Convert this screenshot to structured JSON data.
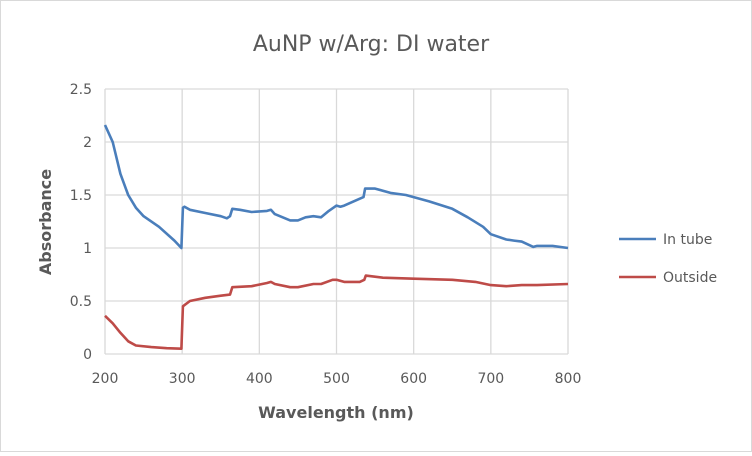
{
  "chart_data": {
    "type": "line",
    "title": "AuNP w/Arg: DI water",
    "xlabel": "Wavelength (nm)",
    "ylabel": "Absorbance",
    "xlim": [
      200,
      800
    ],
    "ylim": [
      0,
      2.5
    ],
    "xticks": [
      200,
      300,
      400,
      500,
      600,
      700,
      800
    ],
    "yticks": [
      0,
      0.5,
      1,
      1.5,
      2,
      2.5
    ],
    "xtick_labels": [
      "200",
      "300",
      "400",
      "500",
      "600",
      "700",
      "800"
    ],
    "ytick_labels": [
      "0",
      "0.5",
      "1",
      "1.5",
      "2",
      "2.5"
    ],
    "grid": true,
    "legend_position": "right",
    "series": [
      {
        "name": "In tube",
        "color": "#4a7ebb",
        "x": [
          200,
          210,
          220,
          230,
          240,
          250,
          270,
          290,
          299,
          301,
          303,
          310,
          330,
          350,
          358,
          362,
          365,
          375,
          390,
          410,
          415,
          420,
          440,
          450,
          460,
          470,
          480,
          490,
          500,
          505,
          510,
          535,
          537,
          550,
          570,
          590,
          620,
          650,
          670,
          690,
          700,
          720,
          730,
          740,
          755,
          760,
          780,
          800
        ],
        "y": [
          2.16,
          2.0,
          1.7,
          1.5,
          1.38,
          1.3,
          1.2,
          1.07,
          1.0,
          1.38,
          1.39,
          1.36,
          1.33,
          1.3,
          1.28,
          1.3,
          1.37,
          1.36,
          1.34,
          1.35,
          1.36,
          1.32,
          1.26,
          1.26,
          1.29,
          1.3,
          1.29,
          1.35,
          1.4,
          1.39,
          1.4,
          1.48,
          1.56,
          1.56,
          1.52,
          1.5,
          1.44,
          1.37,
          1.29,
          1.2,
          1.13,
          1.08,
          1.07,
          1.06,
          1.01,
          1.02,
          1.02,
          1.0
        ]
      },
      {
        "name": "Outside",
        "color": "#be4b48",
        "x": [
          200,
          210,
          220,
          230,
          240,
          260,
          280,
          299,
          301,
          310,
          330,
          350,
          362,
          365,
          390,
          410,
          415,
          420,
          440,
          450,
          470,
          480,
          495,
          500,
          510,
          530,
          536,
          538,
          560,
          600,
          650,
          680,
          700,
          720,
          740,
          760,
          800
        ],
        "y": [
          0.36,
          0.29,
          0.2,
          0.12,
          0.08,
          0.065,
          0.055,
          0.05,
          0.45,
          0.5,
          0.53,
          0.55,
          0.56,
          0.63,
          0.64,
          0.67,
          0.68,
          0.66,
          0.63,
          0.63,
          0.66,
          0.66,
          0.7,
          0.7,
          0.68,
          0.68,
          0.7,
          0.74,
          0.72,
          0.71,
          0.7,
          0.68,
          0.65,
          0.64,
          0.65,
          0.65,
          0.66
        ]
      }
    ]
  }
}
